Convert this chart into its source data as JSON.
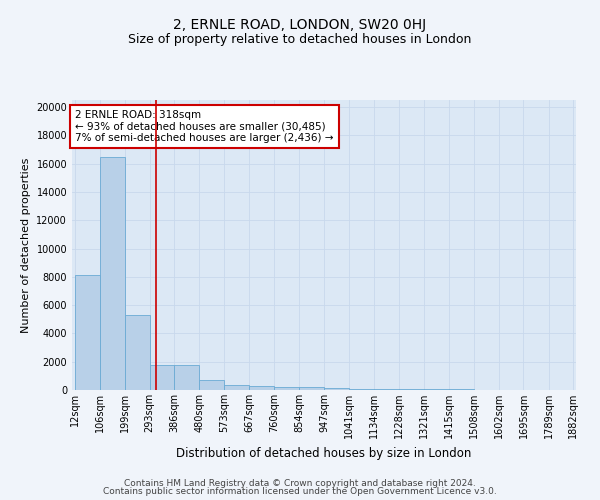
{
  "title": "2, ERNLE ROAD, LONDON, SW20 0HJ",
  "subtitle": "Size of property relative to detached houses in London",
  "xlabel": "Distribution of detached houses by size in London",
  "ylabel": "Number of detached properties",
  "bar_values": [
    8100,
    16500,
    5300,
    1800,
    1800,
    700,
    350,
    250,
    200,
    200,
    150,
    100,
    50,
    50,
    50,
    50,
    30,
    30,
    20,
    20
  ],
  "bin_edges": [
    12,
    106,
    199,
    293,
    386,
    480,
    573,
    667,
    760,
    854,
    947,
    1041,
    1134,
    1228,
    1321,
    1415,
    1508,
    1602,
    1695,
    1789,
    1882
  ],
  "x_labels": [
    "12sqm",
    "106sqm",
    "199sqm",
    "293sqm",
    "386sqm",
    "480sqm",
    "573sqm",
    "667sqm",
    "760sqm",
    "854sqm",
    "947sqm",
    "1041sqm",
    "1134sqm",
    "1228sqm",
    "1321sqm",
    "1415sqm",
    "1508sqm",
    "1602sqm",
    "1695sqm",
    "1789sqm",
    "1882sqm"
  ],
  "bar_color": "#b8d0e8",
  "bar_edge_color": "#6aaad4",
  "plot_bg_color": "#dce8f5",
  "fig_bg_color": "#f0f4fa",
  "red_line_x": 318,
  "annotation_text": "2 ERNLE ROAD: 318sqm\n← 93% of detached houses are smaller (30,485)\n7% of semi-detached houses are larger (2,436) →",
  "annotation_box_color": "#ffffff",
  "annotation_box_edge_color": "#cc0000",
  "ylim": [
    0,
    20500
  ],
  "yticks": [
    0,
    2000,
    4000,
    6000,
    8000,
    10000,
    12000,
    14000,
    16000,
    18000,
    20000
  ],
  "footnote_line1": "Contains HM Land Registry data © Crown copyright and database right 2024.",
  "footnote_line2": "Contains public sector information licensed under the Open Government Licence v3.0.",
  "title_fontsize": 10,
  "subtitle_fontsize": 9,
  "tick_fontsize": 7,
  "ylabel_fontsize": 8,
  "xlabel_fontsize": 8.5,
  "annotation_fontsize": 7.5,
  "footnote_fontsize": 6.5,
  "grid_color": "#c8d8ec"
}
